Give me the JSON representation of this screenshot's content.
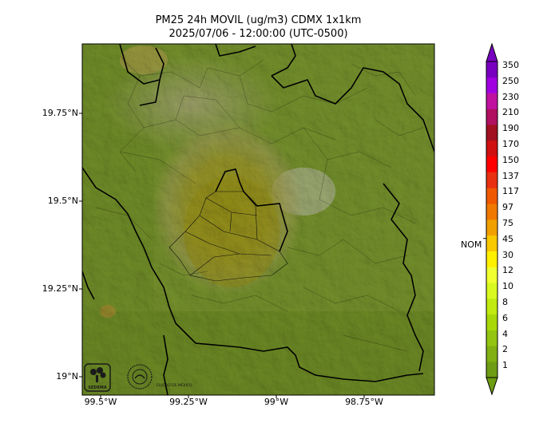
{
  "title": {
    "line1": "PM25 24h MOVIL (ug/m3) CDMX 1x1km",
    "line2": "2025/07/06 - 12:00:00 (UTC-0500)"
  },
  "axes": {
    "latitude_ticks": [
      "19.75°N",
      "19.5°N",
      "19.25°N",
      "19°N"
    ],
    "longitude_ticks": [
      "99.5°W",
      "99.25°W",
      "99°W",
      "98.75°W"
    ]
  },
  "colorbar": {
    "labels": [
      "1",
      "2",
      "4",
      "6",
      "8",
      "10",
      "12",
      "30",
      "45",
      "75",
      "97",
      "117",
      "137",
      "150",
      "170",
      "190",
      "210",
      "230",
      "250",
      "350"
    ],
    "colors": [
      "#6e9c12",
      "#80b012",
      "#92c410",
      "#a8d808",
      "#c0ea10",
      "#d8f820",
      "#f0ff30",
      "#fff000",
      "#f8c800",
      "#f0a000",
      "#f07800",
      "#f05800",
      "#e83010",
      "#ff0000",
      "#d01010",
      "#a01020",
      "#b01060",
      "#c010a0",
      "#a000e0",
      "#7800c0"
    ],
    "nom_label": "NOM",
    "nom_value": 45
  },
  "logos": {
    "sedema_text": "SEDEMA",
    "cdmx_text": "CIUDAD DE MÉXICO"
  }
}
